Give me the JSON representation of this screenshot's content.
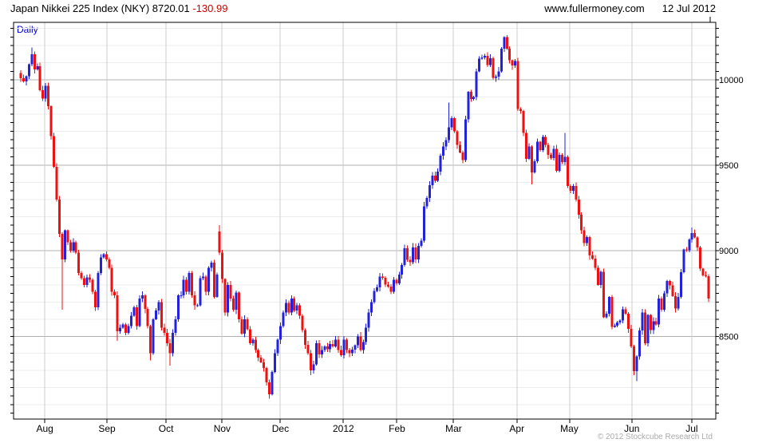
{
  "header": {
    "title": "Japan Nikkei 225 Index (NKY) 8720.01 ",
    "change": "-130.99",
    "site": "www.fullermoney.com",
    "date": "12 Jul 2012"
  },
  "footer": {
    "copyright": "© 2012 Stockcube Research Ltd"
  },
  "chart_data": {
    "type": "candlestick",
    "title": "Japan Nikkei 225 Index (NKY)",
    "frequency_label": "Daily",
    "last_price": 8720.01,
    "change": -130.99,
    "as_of_date": "12 Jul 2012",
    "days": 250,
    "y_axis": {
      "side": "right",
      "tick_labels": [
        10000,
        9500,
        9000,
        8500
      ],
      "minor_grid_step": 100,
      "outer_tick_step": 50,
      "range_low": 8016,
      "range_high": 10336,
      "grid": "on"
    },
    "x_axis": {
      "months": [
        {
          "label": "Aug",
          "day": 8.7
        },
        {
          "label": "Sep",
          "day": 31.2
        },
        {
          "label": "Oct",
          "day": 52.6
        },
        {
          "label": "Nov",
          "day": 72.9
        },
        {
          "label": "Dec",
          "day": 94.0
        },
        {
          "label": "2012",
          "day": 116.8
        },
        {
          "label": "Feb",
          "day": 136.2
        },
        {
          "label": "Mar",
          "day": 156.7
        },
        {
          "label": "Apr",
          "day": 179.6
        },
        {
          "label": "May",
          "day": 198.6
        },
        {
          "label": "Jun",
          "day": 221.2
        },
        {
          "label": "Jul",
          "day": 242.9
        }
      ]
    },
    "colors": {
      "up": "#2222dd",
      "down": "#ee1111",
      "grid_minor": "#ededed",
      "grid_major": "#b0b0b0",
      "grid_month": "#cdcdcd",
      "frame": "#000000",
      "daily_label": "#0000cc",
      "change_text": "#cc0000",
      "copyright_text": "#aaaaaa"
    },
    "closes": [
      10010,
      9990,
      10020,
      10090,
      10150,
      10060,
      10080,
      9940,
      9890,
      9965,
      9845,
      9670,
      9490,
      9300,
      9100,
      8950,
      9120,
      9050,
      9000,
      9050,
      8990,
      8870,
      8840,
      8800,
      8845,
      8830,
      8760,
      8670,
      8870,
      8960,
      8980,
      8950,
      8900,
      8760,
      8740,
      8530,
      8550,
      8570,
      8520,
      8560,
      8620,
      8670,
      8560,
      8720,
      8740,
      8660,
      8560,
      8400,
      8600,
      8650,
      8700,
      8550,
      8520,
      8460,
      8400,
      8520,
      8600,
      8740,
      8740,
      8830,
      8760,
      8870,
      8740,
      8680,
      8680,
      8840,
      8850,
      8760,
      8900,
      8930,
      8730,
      8860,
      8990,
      8835,
      8640,
      8800,
      8720,
      8655,
      8755,
      8600,
      8515,
      8600,
      8540,
      8460,
      8480,
      8420,
      8375,
      8348,
      8314,
      8230,
      8160,
      8290,
      8400,
      8480,
      8560,
      8640,
      8695,
      8640,
      8720,
      8650,
      8680,
      8620,
      8536,
      8450,
      8400,
      8300,
      8336,
      8460,
      8395,
      8420,
      8440,
      8425,
      8455,
      8440,
      8480,
      8420,
      8390,
      8480,
      8420,
      8400,
      8422,
      8447,
      8500,
      8420,
      8466,
      8550,
      8639,
      8700,
      8765,
      8785,
      8849,
      8841,
      8802,
      8790,
      8760,
      8831,
      8810,
      8860,
      8917,
      9015,
      8947,
      8932,
      9020,
      8950,
      9030,
      9060,
      9260,
      9310,
      9384,
      9440,
      9410,
      9463,
      9557,
      9610,
      9647,
      9723,
      9777,
      9698,
      9620,
      9576,
      9530,
      9768,
      9930,
      9889,
      9899,
      10050,
      10123,
      10130,
      10141,
      10086,
      10127,
      10011,
      10018,
      10050,
      10182,
      10250,
      10182,
      10114,
      10084,
      10110,
      9830,
      9819,
      9690,
      9538,
      9611,
      9458,
      9524,
      9637,
      9590,
      9667,
      9620,
      9561,
      9542,
      9595,
      9468,
      9561,
      9520,
      9550,
      9380,
      9350,
      9380,
      9300,
      9210,
      9119,
      9045,
      9080,
      8973,
      8953,
      8900,
      8801,
      8877,
      8611,
      8633,
      8729,
      8556,
      8563,
      8580,
      8593,
      8657,
      8633,
      8543,
      8440,
      8295,
      8382,
      8533,
      8640,
      8459,
      8624,
      8536,
      8588,
      8569,
      8721,
      8655,
      8752,
      8824,
      8798,
      8734,
      8663,
      8730,
      8874,
      9007,
      9003,
      9066,
      9104,
      9079,
      9020,
      8896,
      8857,
      8851,
      8720
    ],
    "open_overrides": [
      [
        0,
        10040
      ],
      [
        72,
        9113
      ]
    ],
    "wick_extremes": [
      [
        4,
        "h",
        10190
      ],
      [
        15,
        "l",
        8655
      ],
      [
        35,
        "l",
        8473
      ],
      [
        47,
        "l",
        8360
      ],
      [
        54,
        "l",
        8328
      ],
      [
        72,
        "h",
        9150
      ],
      [
        90,
        "l",
        8135
      ],
      [
        105,
        "l",
        8272
      ],
      [
        155,
        "h",
        9866
      ],
      [
        175,
        "h",
        10255
      ],
      [
        185,
        "l",
        9388
      ],
      [
        197,
        "h",
        9690
      ],
      [
        223,
        "l",
        8238
      ],
      [
        243,
        "h",
        9136
      ],
      [
        249,
        "l",
        8700
      ]
    ]
  }
}
